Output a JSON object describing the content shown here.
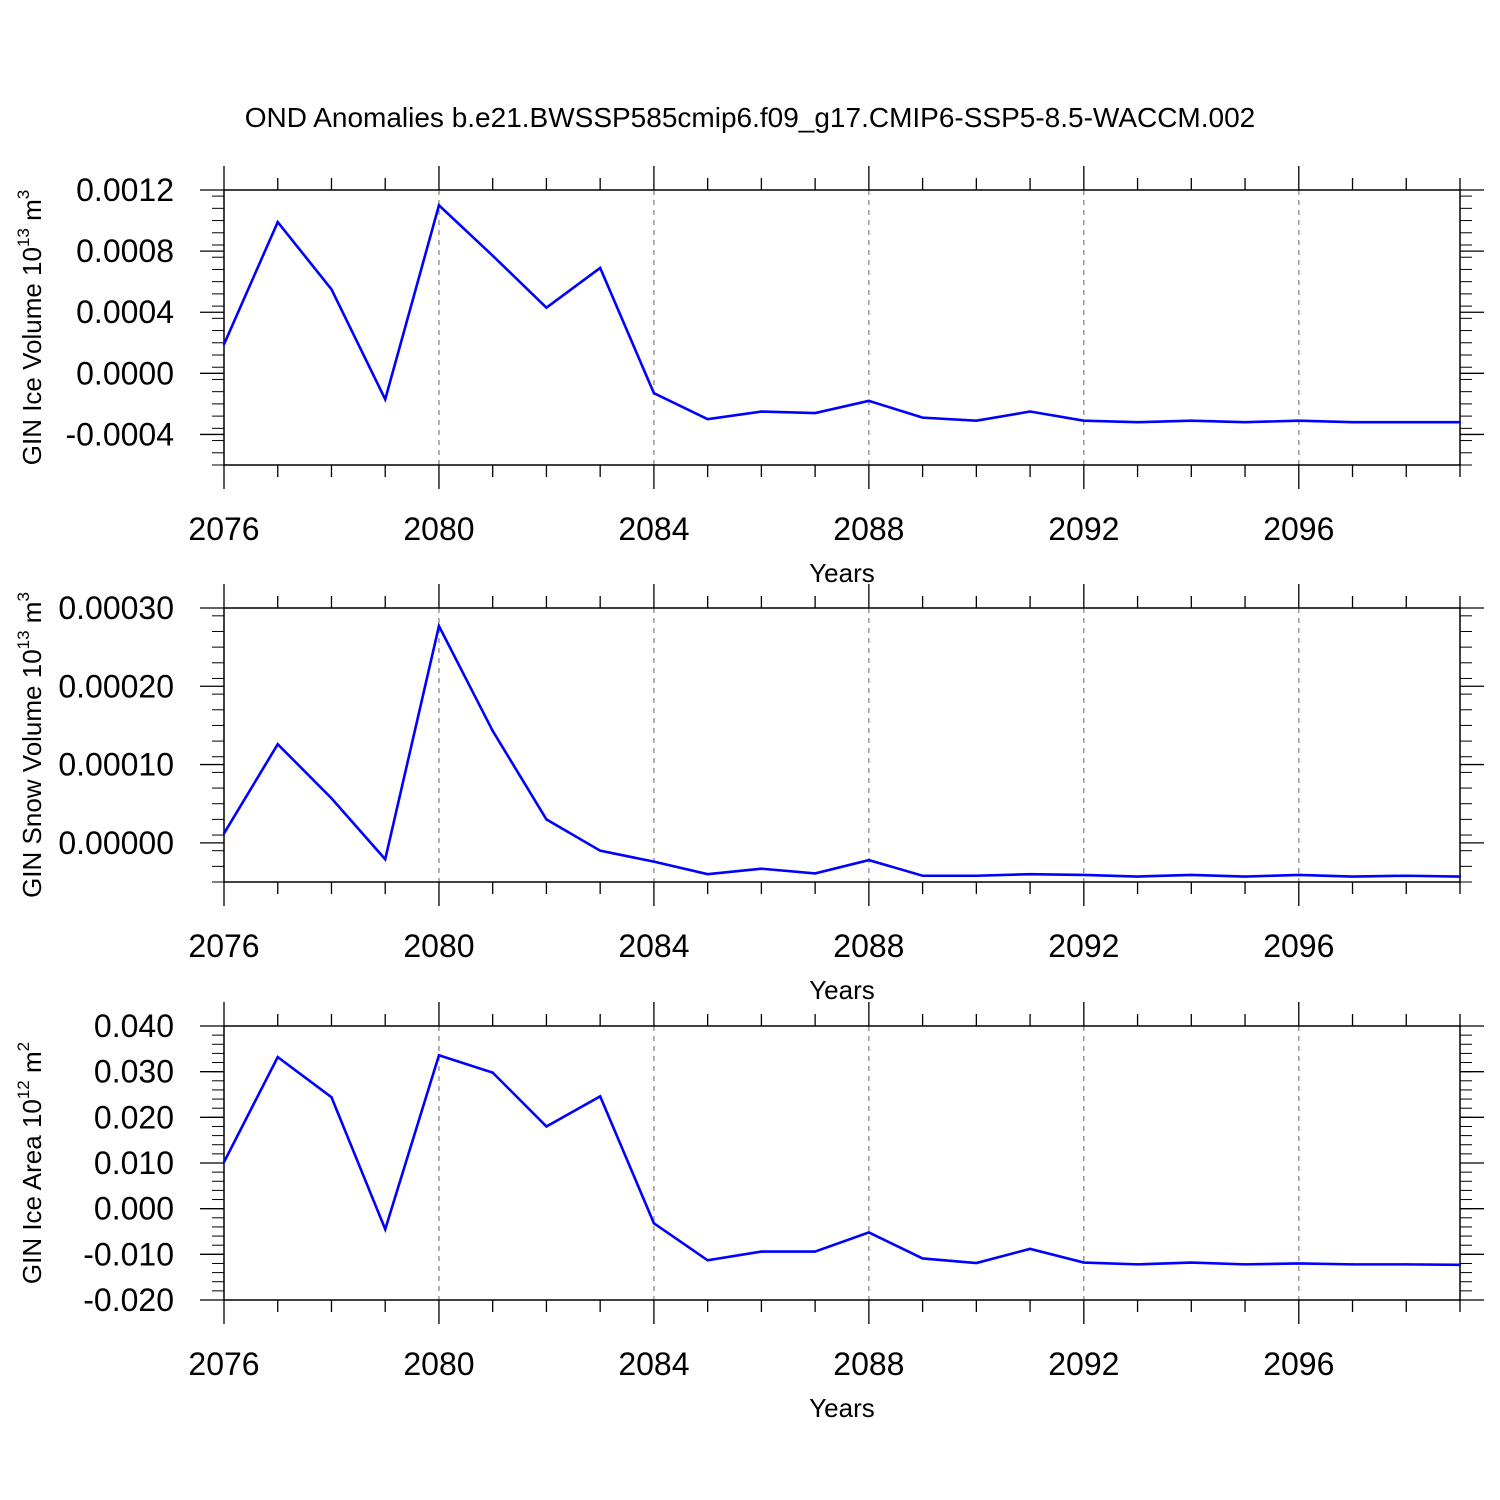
{
  "title": "OND Anomalies b.e21.BWSSP585cmip6.f09_g17.CMIP6-SSP5-8.5-WACCM.002",
  "line_color": "#0000ff",
  "chart_data": [
    {
      "type": "line",
      "ylabel": {
        "main": "GIN Ice Volume 10",
        "exp": "13",
        "unit": " m",
        "unit_exp": "3"
      },
      "xlabel": "Years",
      "xlim": [
        2076,
        2099
      ],
      "ylim": [
        -0.0006,
        0.0012
      ],
      "xticks": [
        "2076",
        "2080",
        "2084",
        "2088",
        "2092",
        "2096"
      ],
      "yticks": [
        "0.0012",
        "0.0008",
        "0.0004",
        "0.0000",
        "-0.0004"
      ],
      "grid": "vertical dashed at major x ticks",
      "x": [
        2076,
        2077,
        2078,
        2079,
        2080,
        2081,
        2082,
        2083,
        2084,
        2085,
        2086,
        2087,
        2088,
        2089,
        2090,
        2091,
        2092,
        2093,
        2094,
        2095,
        2096,
        2097,
        2098,
        2099
      ],
      "values": [
        0.00019,
        0.00099,
        0.00055,
        -0.00017,
        0.0011,
        0.00077,
        0.00043,
        0.00069,
        -0.00013,
        -0.0003,
        -0.00025,
        -0.00026,
        -0.00018,
        -0.00029,
        -0.00031,
        -0.00025,
        -0.00031,
        -0.00032,
        -0.00031,
        -0.00032,
        -0.00031,
        -0.00032,
        -0.00032,
        -0.00032
      ]
    },
    {
      "type": "line",
      "ylabel": {
        "main": "GIN Snow Volume 10",
        "exp": "13",
        "unit": " m",
        "unit_exp": "3"
      },
      "xlabel": "Years",
      "xlim": [
        2076,
        2099
      ],
      "ylim": [
        -5e-05,
        0.0003
      ],
      "xticks": [
        "2076",
        "2080",
        "2084",
        "2088",
        "2092",
        "2096"
      ],
      "yticks": [
        "0.00030",
        "0.00020",
        "0.00010",
        "0.00000"
      ],
      "grid": "vertical dashed at major x ticks",
      "x": [
        2076,
        2077,
        2078,
        2079,
        2080,
        2081,
        2082,
        2083,
        2084,
        2085,
        2086,
        2087,
        2088,
        2089,
        2090,
        2091,
        2092,
        2093,
        2094,
        2095,
        2096,
        2097,
        2098,
        2099
      ],
      "values": [
        1.2e-05,
        0.000126,
        5.7e-05,
        -2.1e-05,
        0.000277,
        0.000143,
        3e-05,
        -1e-05,
        -2.4e-05,
        -4e-05,
        -3.3e-05,
        -3.9e-05,
        -2.2e-05,
        -4.2e-05,
        -4.2e-05,
        -4e-05,
        -4.1e-05,
        -4.3e-05,
        -4.1e-05,
        -4.3e-05,
        -4.1e-05,
        -4.3e-05,
        -4.2e-05,
        -4.3e-05
      ]
    },
    {
      "type": "line",
      "ylabel": {
        "main": "GIN Ice Area 10",
        "exp": "12",
        "unit": " m",
        "unit_exp": "2"
      },
      "xlabel": "Years",
      "xlim": [
        2076,
        2099
      ],
      "ylim": [
        -0.02,
        0.04
      ],
      "xticks": [
        "2076",
        "2080",
        "2084",
        "2088",
        "2092",
        "2096"
      ],
      "yticks": [
        "0.040",
        "0.030",
        "0.020",
        "0.010",
        "0.000",
        "-0.010",
        "-0.020"
      ],
      "grid": "vertical dashed at major x ticks",
      "x": [
        2076,
        2077,
        2078,
        2079,
        2080,
        2081,
        2082,
        2083,
        2084,
        2085,
        2086,
        2087,
        2088,
        2089,
        2090,
        2091,
        2092,
        2093,
        2094,
        2095,
        2096,
        2097,
        2098,
        2099
      ],
      "values": [
        0.0102,
        0.0332,
        0.0244,
        -0.0045,
        0.0336,
        0.0298,
        0.018,
        0.0246,
        -0.0032,
        -0.0113,
        -0.0094,
        -0.0094,
        -0.0052,
        -0.0109,
        -0.0119,
        -0.0088,
        -0.0118,
        -0.0122,
        -0.0118,
        -0.0122,
        -0.012,
        -0.0122,
        -0.0122,
        -0.0123
      ]
    }
  ]
}
